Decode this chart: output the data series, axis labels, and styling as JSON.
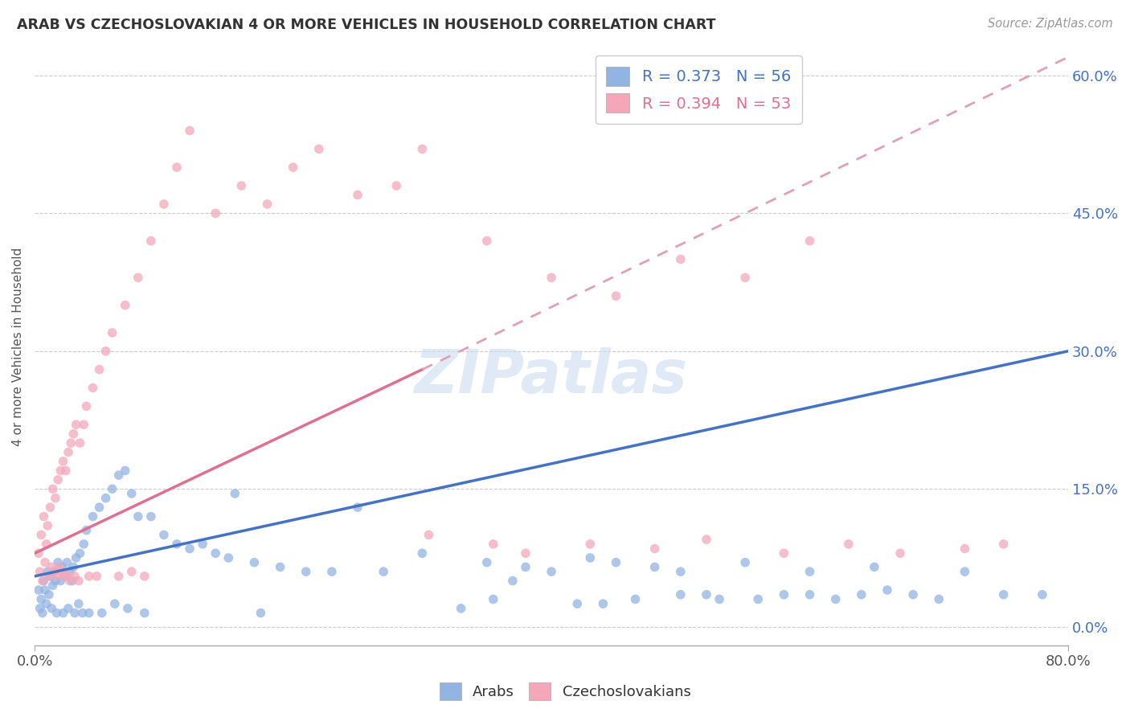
{
  "title": "ARAB VS CZECHOSLOVAKIAN 4 OR MORE VEHICLES IN HOUSEHOLD CORRELATION CHART",
  "source": "Source: ZipAtlas.com",
  "ylabel": "4 or more Vehicles in Household",
  "ytick_vals": [
    0.0,
    15.0,
    30.0,
    45.0,
    60.0
  ],
  "xlim": [
    0.0,
    80.0
  ],
  "ylim": [
    -2.0,
    63.0
  ],
  "arab_color": "#92b4e3",
  "arab_line_color": "#4472c4",
  "czech_color": "#f4a7b9",
  "czech_line_color": "#e07090",
  "czech_dash_color": "#e0a0b8",
  "arab_R": 0.373,
  "arab_N": 56,
  "czech_R": 0.394,
  "czech_N": 53,
  "watermark": "ZIPatlas",
  "arab_line_x0": 0.0,
  "arab_line_y0": 5.5,
  "arab_line_x1": 80.0,
  "arab_line_y1": 30.0,
  "czech_solid_x0": 0.0,
  "czech_solid_y0": 8.0,
  "czech_solid_x1": 30.0,
  "czech_solid_y1": 28.0,
  "czech_dash_x0": 30.0,
  "czech_dash_y0": 28.0,
  "czech_dash_x1": 80.0,
  "czech_dash_y1": 62.0,
  "arab_scatter_x": [
    0.3,
    0.5,
    0.7,
    0.8,
    1.0,
    1.1,
    1.2,
    1.4,
    1.5,
    1.6,
    1.8,
    2.0,
    2.1,
    2.3,
    2.5,
    2.7,
    2.9,
    3.0,
    3.2,
    3.5,
    3.8,
    4.0,
    4.5,
    5.0,
    5.5,
    6.0,
    6.5,
    7.0,
    7.5,
    8.0,
    9.0,
    10.0,
    11.0,
    12.0,
    13.0,
    14.0,
    15.0,
    17.0,
    19.0,
    21.0,
    23.0,
    25.0,
    27.0,
    30.0,
    33.0,
    35.0,
    38.0,
    40.0,
    43.0,
    45.0,
    48.0,
    50.0,
    55.0,
    60.0,
    65.0,
    72.0
  ],
  "arab_scatter_y": [
    4.0,
    3.0,
    5.0,
    4.0,
    6.0,
    3.5,
    5.5,
    4.5,
    6.0,
    5.0,
    7.0,
    5.0,
    6.5,
    5.5,
    7.0,
    6.0,
    5.0,
    6.5,
    7.5,
    8.0,
    9.0,
    10.5,
    12.0,
    13.0,
    14.0,
    15.0,
    16.5,
    17.0,
    14.5,
    12.0,
    12.0,
    10.0,
    9.0,
    8.5,
    9.0,
    8.0,
    7.5,
    7.0,
    6.5,
    6.0,
    6.0,
    13.0,
    6.0,
    8.0,
    2.0,
    7.0,
    6.5,
    6.0,
    7.5,
    7.0,
    6.5,
    6.0,
    7.0,
    6.0,
    6.5,
    6.0
  ],
  "arab_scatter_x2": [
    0.4,
    0.6,
    0.9,
    1.3,
    1.7,
    2.2,
    2.6,
    3.1,
    3.4,
    3.7,
    4.2,
    5.2,
    6.2,
    7.2,
    8.5,
    15.5,
    17.5,
    35.5,
    37.0,
    42.0,
    44.0,
    46.5,
    50.0,
    52.0,
    53.0,
    56.0,
    58.0,
    60.0,
    62.0,
    64.0,
    66.0,
    68.0,
    70.0,
    75.0,
    78.0
  ],
  "arab_scatter_y2": [
    2.0,
    1.5,
    2.5,
    2.0,
    1.5,
    1.5,
    2.0,
    1.5,
    2.5,
    1.5,
    1.5,
    1.5,
    2.5,
    2.0,
    1.5,
    14.5,
    1.5,
    3.0,
    5.0,
    2.5,
    2.5,
    3.0,
    3.5,
    3.5,
    3.0,
    3.0,
    3.5,
    3.5,
    3.0,
    3.5,
    4.0,
    3.5,
    3.0,
    3.5,
    3.5
  ],
  "czech_scatter_x": [
    0.3,
    0.5,
    0.7,
    0.9,
    1.0,
    1.2,
    1.4,
    1.6,
    1.8,
    2.0,
    2.2,
    2.4,
    2.6,
    2.8,
    3.0,
    3.2,
    3.5,
    3.8,
    4.0,
    4.5,
    5.0,
    5.5,
    6.0,
    7.0,
    8.0,
    9.0,
    10.0,
    11.0,
    12.0,
    14.0,
    16.0,
    18.0,
    20.0,
    22.0,
    25.0,
    28.0,
    30.0,
    35.0,
    40.0,
    45.0,
    50.0,
    55.0,
    60.0
  ],
  "czech_scatter_y": [
    8.0,
    10.0,
    12.0,
    9.0,
    11.0,
    13.0,
    15.0,
    14.0,
    16.0,
    17.0,
    18.0,
    17.0,
    19.0,
    20.0,
    21.0,
    22.0,
    20.0,
    22.0,
    24.0,
    26.0,
    28.0,
    30.0,
    32.0,
    35.0,
    38.0,
    42.0,
    46.0,
    50.0,
    54.0,
    45.0,
    48.0,
    46.0,
    50.0,
    52.0,
    47.0,
    48.0,
    52.0,
    42.0,
    38.0,
    36.0,
    40.0,
    38.0,
    42.0
  ],
  "czech_scatter_x2": [
    0.4,
    0.6,
    0.8,
    1.1,
    1.3,
    1.5,
    1.7,
    1.9,
    2.1,
    2.3,
    2.5,
    2.7,
    3.1,
    3.4,
    4.2,
    4.8,
    6.5,
    7.5,
    8.5,
    30.5,
    35.5,
    38.0,
    43.0,
    48.0,
    52.0,
    58.0,
    63.0,
    67.0,
    72.0,
    75.0
  ],
  "czech_scatter_y2": [
    6.0,
    5.0,
    7.0,
    5.5,
    6.5,
    6.0,
    5.5,
    6.5,
    6.0,
    5.5,
    5.5,
    5.0,
    5.5,
    5.0,
    5.5,
    5.5,
    5.5,
    6.0,
    5.5,
    10.0,
    9.0,
    8.0,
    9.0,
    8.5,
    9.5,
    8.0,
    9.0,
    8.0,
    8.5,
    9.0
  ]
}
